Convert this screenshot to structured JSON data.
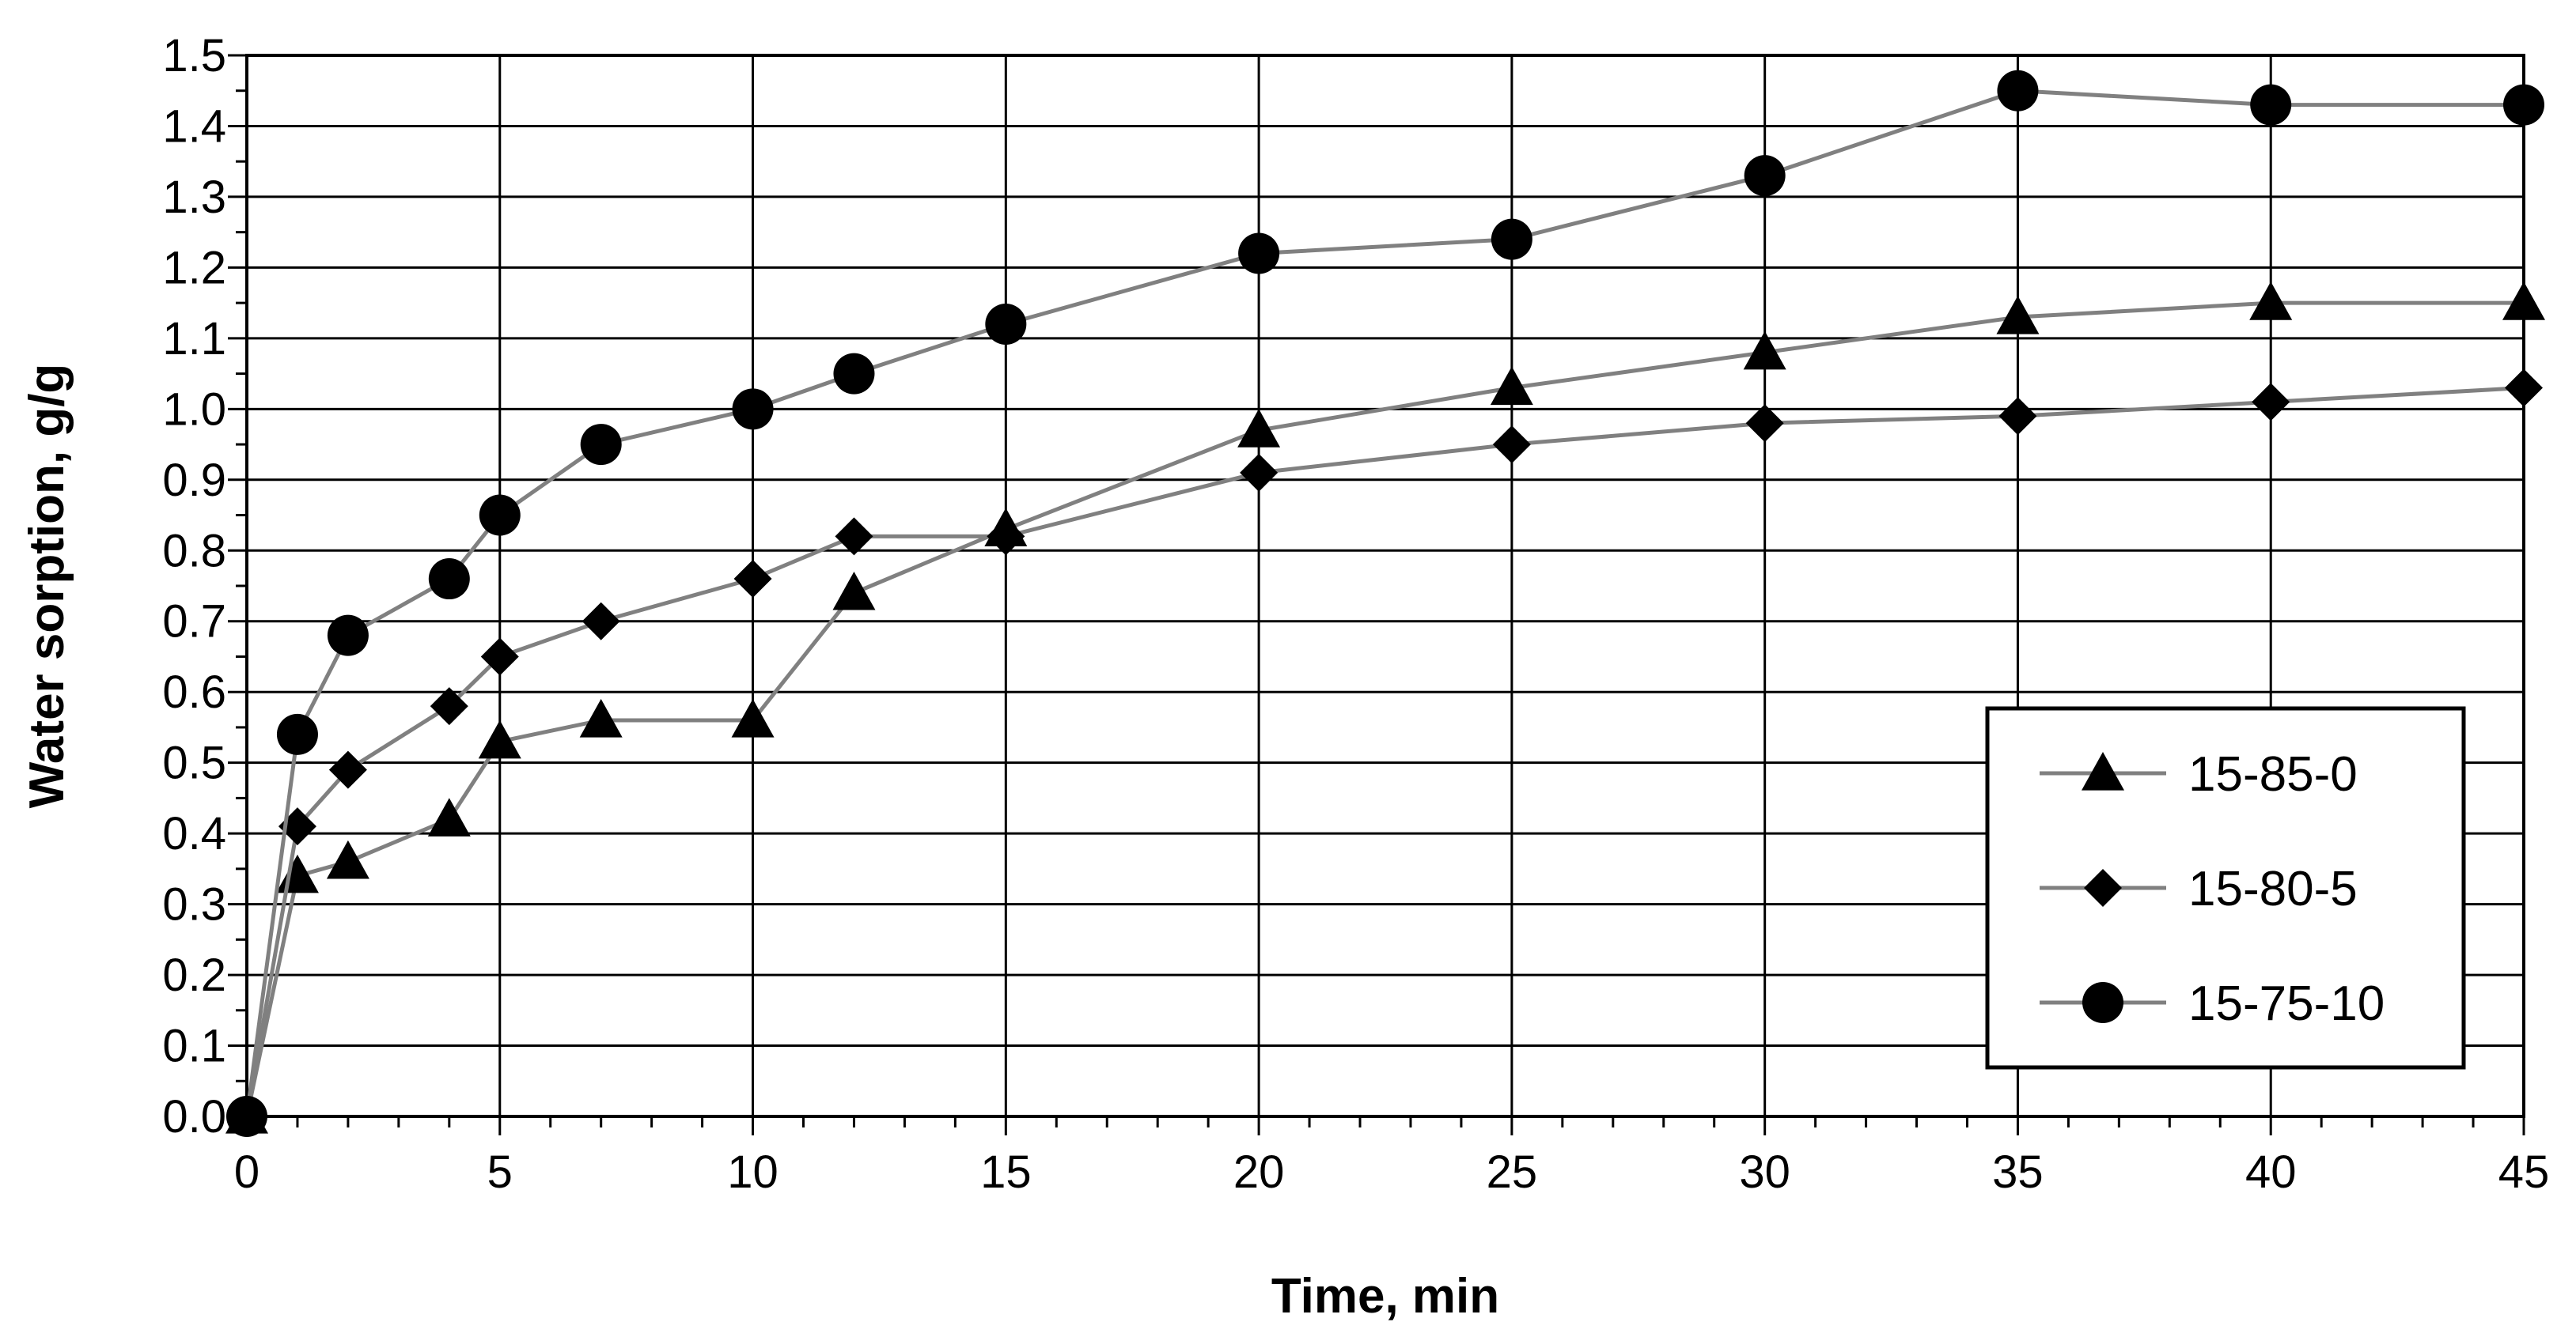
{
  "chart_data": {
    "type": "line",
    "title": "",
    "xlabel": "Time, min",
    "ylabel": "Water sorption, g/g",
    "xlim": [
      0,
      45
    ],
    "ylim": [
      0,
      1.5
    ],
    "x_ticks": [
      0,
      5,
      10,
      15,
      20,
      25,
      30,
      35,
      40,
      45
    ],
    "y_ticks": [
      "0.0",
      "0.1",
      "0.2",
      "0.3",
      "0.4",
      "0.5",
      "0.6",
      "0.7",
      "0.8",
      "0.9",
      "1.0",
      "1.1",
      "1.2",
      "1.3",
      "1.4",
      "1.5"
    ],
    "grid": true,
    "legend_position": "bottom-right",
    "line_color": "#808080",
    "marker_color": "#000000",
    "series": [
      {
        "name": "15-85-0",
        "marker": "triangle",
        "x": [
          0,
          1,
          2,
          4,
          5,
          7,
          10,
          12,
          15,
          20,
          25,
          30,
          35,
          40,
          45
        ],
        "values": [
          0.0,
          0.34,
          0.36,
          0.42,
          0.53,
          0.56,
          0.56,
          0.74,
          0.83,
          0.97,
          1.03,
          1.08,
          1.13,
          1.15,
          1.15
        ]
      },
      {
        "name": "15-80-5",
        "marker": "diamond",
        "x": [
          0,
          1,
          2,
          4,
          5,
          7,
          10,
          12,
          15,
          20,
          25,
          30,
          35,
          40,
          45
        ],
        "values": [
          0.0,
          0.41,
          0.49,
          0.58,
          0.65,
          0.7,
          0.76,
          0.82,
          0.82,
          0.91,
          0.95,
          0.98,
          0.99,
          1.01,
          1.03
        ]
      },
      {
        "name": "15-75-10",
        "marker": "circle",
        "x": [
          0,
          1,
          2,
          4,
          5,
          7,
          10,
          12,
          15,
          20,
          25,
          30,
          35,
          40,
          45
        ],
        "values": [
          0.0,
          0.54,
          0.68,
          0.76,
          0.85,
          0.95,
          1.0,
          1.05,
          1.12,
          1.22,
          1.24,
          1.33,
          1.45,
          1.43,
          1.43
        ]
      }
    ]
  }
}
